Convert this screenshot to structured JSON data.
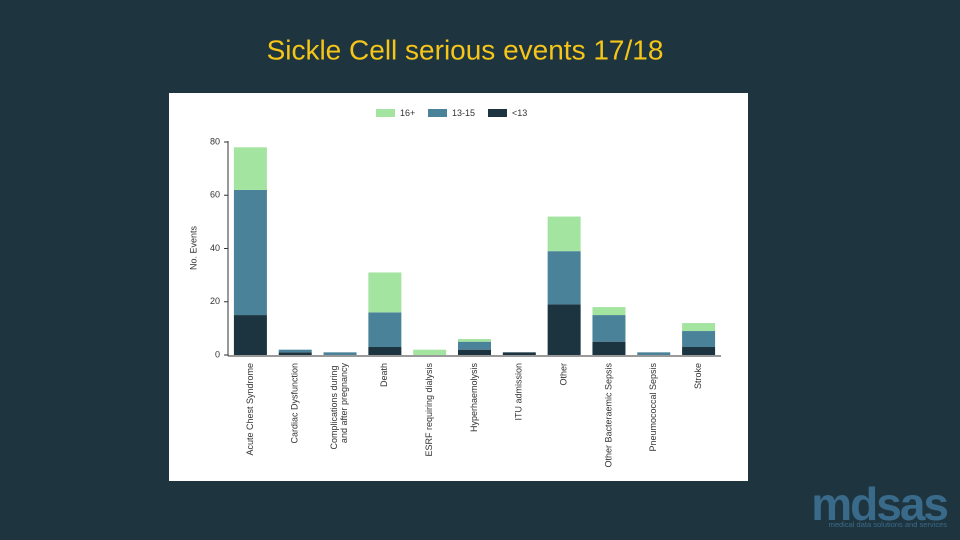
{
  "chart_data": {
    "type": "stacked-bar",
    "title": "Sickle Cell serious events 17/18",
    "y_label": "No. Events",
    "categories": [
      "Acute Chest Syndrome",
      "Cardiac Dysfunction",
      "Complications during and after pregnancy",
      "Death",
      "ESRF requiring dialysis",
      "Hyperhaemolysis",
      "ITU admission",
      "Other",
      "Other Bacteraemic Sepsis",
      "Pneumococcal Sepsis",
      "Stroke"
    ],
    "series": [
      {
        "name": "<13",
        "color": "#1b3440",
        "values": [
          15,
          1,
          0,
          3,
          0,
          2,
          1,
          19,
          5,
          0,
          3
        ]
      },
      {
        "name": "13-15",
        "color": "#4a8299",
        "values": [
          47,
          1,
          1,
          13,
          0,
          3,
          0,
          20,
          10,
          1,
          6
        ]
      },
      {
        "name": "16+",
        "color": "#a3e4a0",
        "values": [
          16,
          0,
          0,
          15,
          2,
          1,
          0,
          13,
          3,
          0,
          3
        ]
      }
    ],
    "ylim": [
      0,
      80
    ],
    "yticks": [
      0,
      20,
      40,
      60,
      80
    ],
    "grid": false,
    "legend": "top"
  },
  "logo": {
    "name": "mdsas",
    "tagline": "medical data solutions and services"
  }
}
